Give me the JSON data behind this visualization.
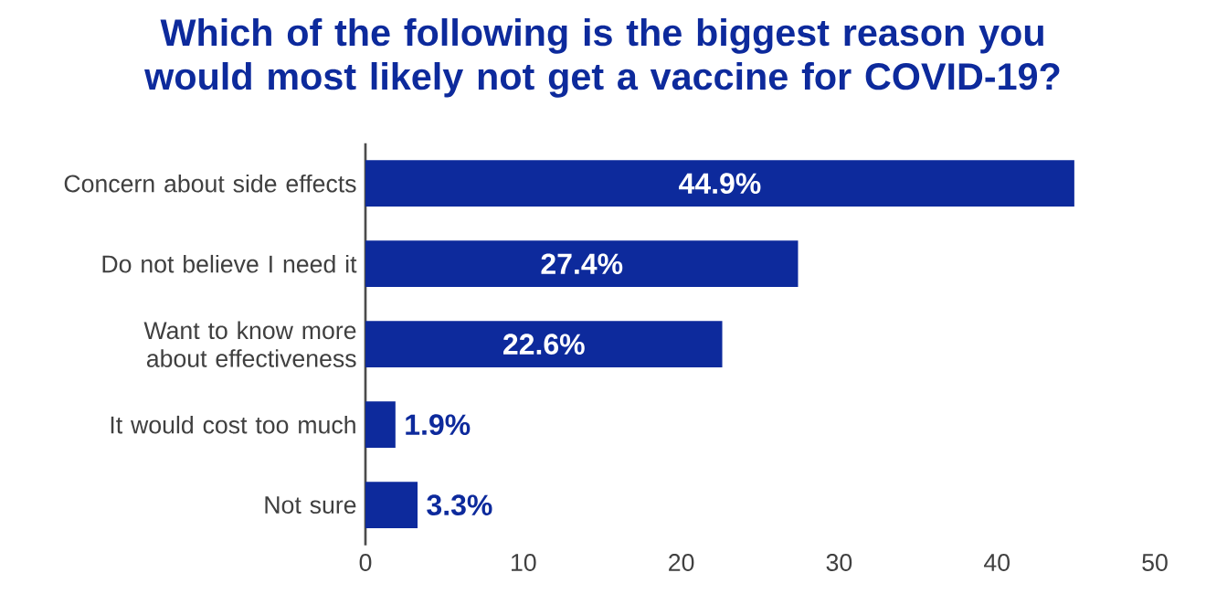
{
  "chart_data": {
    "type": "bar",
    "orientation": "horizontal",
    "title": "Which of the following is the biggest reason you would most likely not get a vaccine for COVID-19?",
    "categories": [
      "Concern about side effects",
      "Do not believe I need it",
      "Want to know more about effectiveness",
      "It would cost too much",
      "Not sure"
    ],
    "values": [
      44.9,
      27.4,
      22.6,
      1.9,
      3.3
    ],
    "value_labels": [
      "44.9%",
      "27.4%",
      "22.6%",
      "1.9%",
      "3.3%"
    ],
    "color": "#0d2a9c",
    "xlim": [
      0,
      50
    ],
    "xticks": [
      0,
      10,
      20,
      30,
      40,
      50
    ]
  }
}
